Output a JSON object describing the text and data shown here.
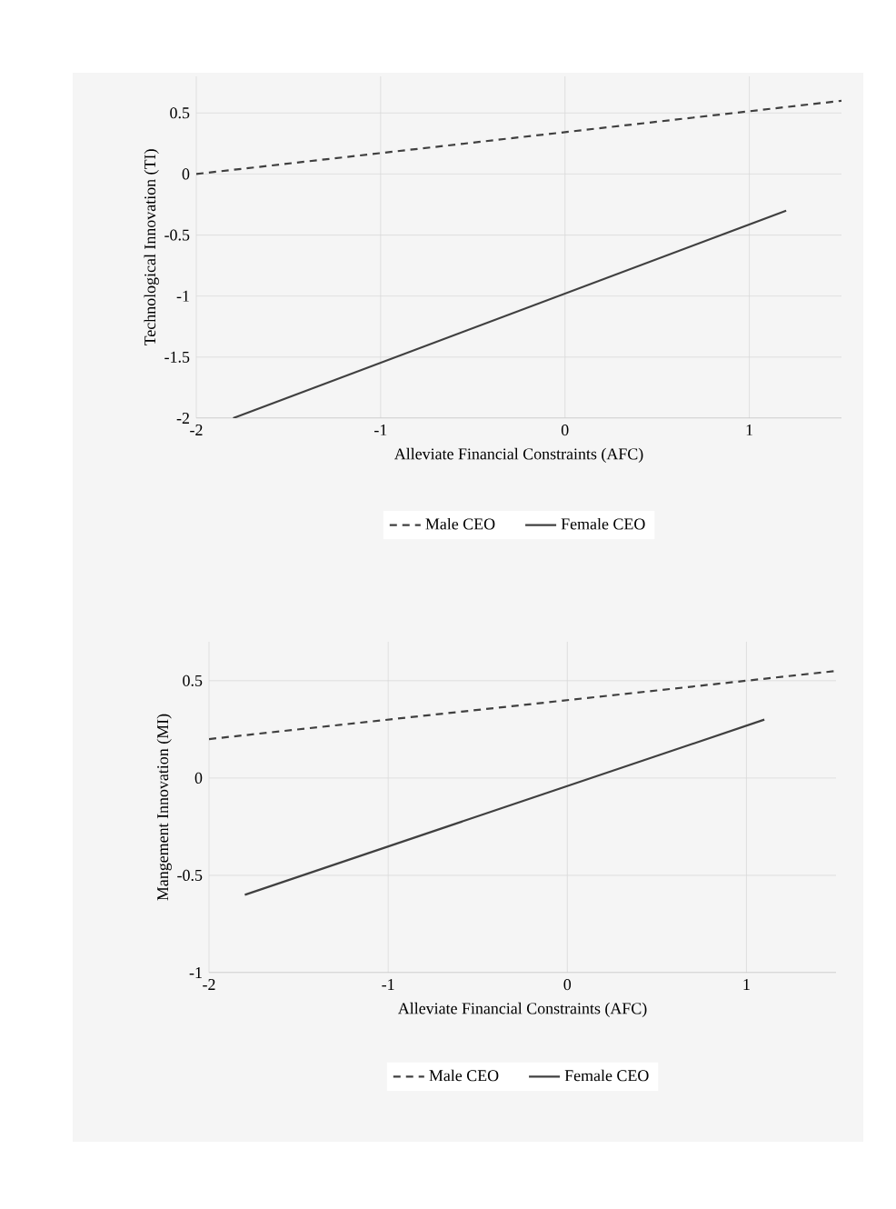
{
  "chart_data": [
    {
      "type": "line",
      "xlabel": "Alleviate  Financial  Constraints (AFC)",
      "ylabel": "Technological Innovation (TI)",
      "xlim": [
        -2,
        1.5
      ],
      "ylim": [
        -2,
        0.8
      ],
      "xticks": [
        -2,
        -1,
        0,
        1
      ],
      "yticks": [
        -2,
        -1.5,
        -1,
        -0.5,
        0,
        0.5
      ],
      "grid": true,
      "legend": "bottom",
      "marker": "none",
      "series": [
        {
          "name": "Male CEO",
          "color": "#404040",
          "line_style": "dashed",
          "x": [
            -2,
            1.5
          ],
          "values": [
            0,
            0.6
          ]
        },
        {
          "name": "Female CEO",
          "color": "#404040",
          "line_style": "solid",
          "x": [
            -1.8,
            1.2
          ],
          "values": [
            -2,
            -0.3
          ]
        }
      ]
    },
    {
      "type": "line",
      "xlabel": "Alleviate  Financial  Constraints (AFC)",
      "ylabel": "Mangement  Innovation (MI)",
      "xlim": [
        -2,
        1.5
      ],
      "ylim": [
        -1,
        0.7
      ],
      "xticks": [
        -2,
        -1,
        0,
        1
      ],
      "yticks": [
        -1,
        -0.5,
        0,
        0.5
      ],
      "grid": true,
      "legend": "bottom",
      "marker": "none",
      "series": [
        {
          "name": "Male CEO",
          "color": "#404040",
          "line_style": "dashed",
          "x": [
            -2,
            1.5
          ],
          "values": [
            0.2,
            0.55
          ]
        },
        {
          "name": "Female CEO",
          "color": "#404040",
          "line_style": "solid",
          "x": [
            -1.8,
            1.1
          ],
          "values": [
            -0.6,
            0.3
          ]
        }
      ]
    }
  ]
}
